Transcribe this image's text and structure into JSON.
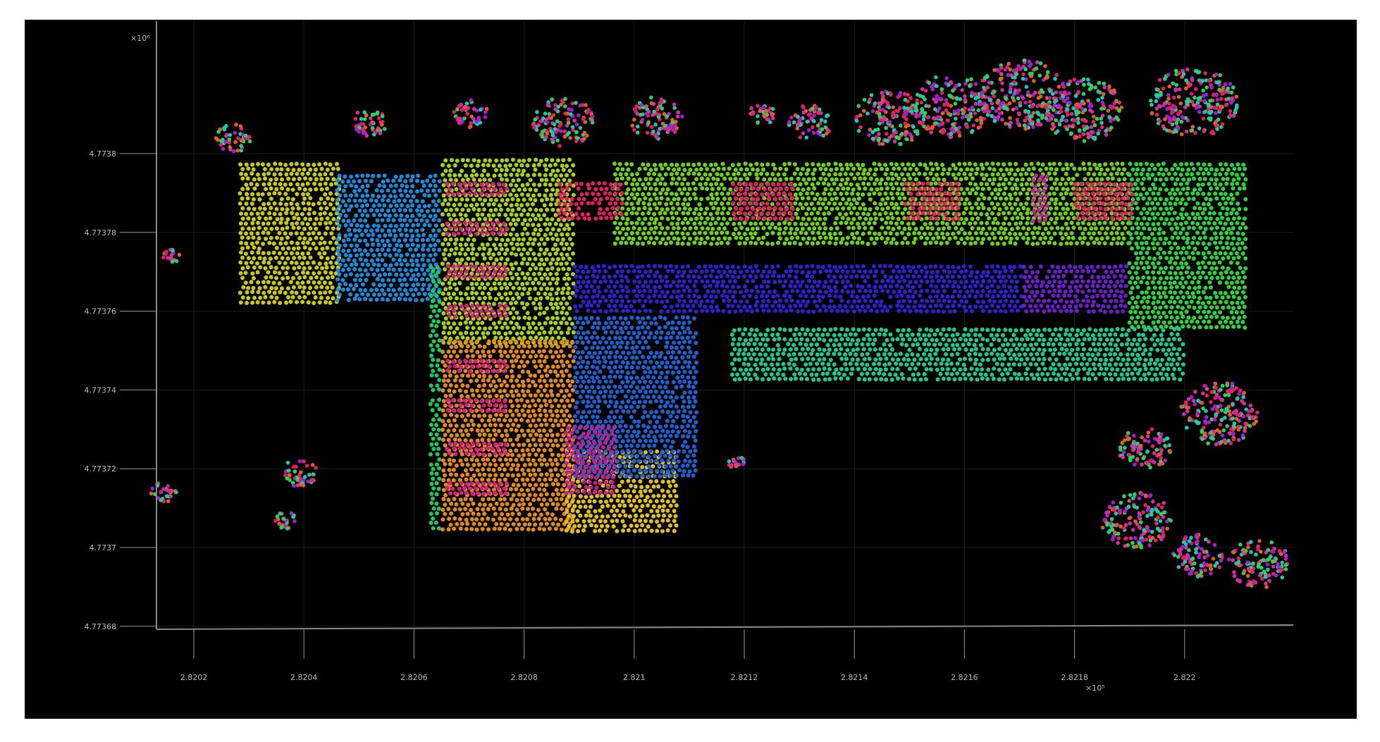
{
  "chart_data": {
    "type": "scatter",
    "title": "",
    "xlabel": "",
    "ylabel": "",
    "xlim": [
      2.82018,
      2.82229
    ],
    "ylim": [
      4.773682,
      4.773831
    ],
    "grid": true,
    "background": "#000000",
    "x_ticks": [
      "2.8202",
      "2.8204",
      "2.8206",
      "2.8208",
      "2.821",
      "2.8212",
      "2.8214",
      "2.8216",
      "2.8218",
      "2.822"
    ],
    "x_tick_values": [
      2.8202,
      2.8204,
      2.8206,
      2.8208,
      2.821,
      2.8212,
      2.8214,
      2.8216,
      2.8218,
      2.822
    ],
    "x_exponent": "×10⁵",
    "y_ticks": [
      "4.7738",
      "4.77378",
      "4.77376",
      "4.77374",
      "4.77372",
      "4.7737",
      "4.77368"
    ],
    "y_tick_values": [
      4.7738,
      4.77378,
      4.77376,
      4.77374,
      4.77372,
      4.7737,
      4.77368
    ],
    "y_exponent": "×10⁶",
    "segments": [
      {
        "x": [
          2.82028,
          2.820464
        ],
        "y": [
          4.773762,
          4.773798
        ],
        "color": "#c8c81e"
      },
      {
        "x": [
          2.820456,
          2.820648
        ],
        "y": [
          4.773763,
          4.773795
        ],
        "color": "#1e8ad8"
      },
      {
        "x": [
          2.820648,
          2.820888
        ],
        "y": [
          4.773752,
          4.773799
        ],
        "color": "#a8d020"
      },
      {
        "x": [
          2.820648,
          2.820888
        ],
        "y": [
          4.773704,
          4.773753
        ],
        "color": "#e08a20"
      },
      {
        "x": [
          2.820872,
          2.82108
        ],
        "y": [
          4.773704,
          4.773725
        ],
        "color": "#e0c020"
      },
      {
        "x": [
          2.820888,
          2.821112
        ],
        "y": [
          4.773718,
          4.773759
        ],
        "color": "#2060d0"
      },
      {
        "x": [
          2.820888,
          2.821704
        ],
        "y": [
          4.773759,
          4.773772
        ],
        "color": "#3020d0"
      },
      {
        "x": [
          2.821704,
          2.821896
        ],
        "y": [
          4.773759,
          4.773772
        ],
        "color": "#6a20c8"
      },
      {
        "x": [
          2.82096,
          2.821896
        ],
        "y": [
          4.773777,
          4.773798
        ],
        "color": "#70d020"
      },
      {
        "x": [
          2.821896,
          2.822112
        ],
        "y": [
          4.773755,
          4.773798
        ],
        "color": "#30d040"
      },
      {
        "x": [
          2.821173,
          2.822
        ],
        "y": [
          4.773742,
          4.773756
        ],
        "color": "#20c890"
      },
      {
        "x": [
          2.820626,
          2.820648
        ],
        "y": [
          4.773704,
          4.773772
        ],
        "color": "#20c860"
      },
      {
        "x": [
          2.820859,
          2.820976
        ],
        "y": [
          4.773783,
          4.773793
        ],
        "color": "#e02060"
      },
      {
        "x": [
          2.821176,
          2.821288
        ],
        "y": [
          4.773783,
          4.773793
        ],
        "color": "#e02060"
      },
      {
        "x": [
          2.821488,
          2.821592
        ],
        "y": [
          4.773783,
          4.773793
        ],
        "color": "#e02060"
      },
      {
        "x": [
          2.821797,
          2.821904
        ],
        "y": [
          4.773783,
          4.773793
        ],
        "color": "#e02060"
      },
      {
        "x": [
          2.82172,
          2.821752
        ],
        "y": [
          4.773783,
          4.773795
        ],
        "color": "#c020a0"
      },
      {
        "x": [
          2.820872,
          2.820968
        ],
        "y": [
          4.773714,
          4.773731
        ],
        "color": "#c02090"
      },
      {
        "x": [
          2.820656,
          2.820768
        ],
        "y": [
          4.773789,
          4.773793
        ],
        "color": "#d02080"
      },
      {
        "x": [
          2.820656,
          2.820768
        ],
        "y": [
          4.773779,
          4.773783
        ],
        "color": "#d02080"
      },
      {
        "x": [
          2.820656,
          2.820768
        ],
        "y": [
          4.773768,
          4.773772
        ],
        "color": "#d02080"
      },
      {
        "x": [
          2.820656,
          2.820768
        ],
        "y": [
          4.773758,
          4.773762
        ],
        "color": "#d02080"
      },
      {
        "x": [
          2.820656,
          2.820768
        ],
        "y": [
          4.773744,
          4.773748
        ],
        "color": "#d02080"
      },
      {
        "x": [
          2.820656,
          2.820768
        ],
        "y": [
          4.773734,
          4.773738
        ],
        "color": "#d02080"
      },
      {
        "x": [
          2.820656,
          2.820768
        ],
        "y": [
          4.773723,
          4.773727
        ],
        "color": "#d02080"
      },
      {
        "x": [
          2.820656,
          2.820768
        ],
        "y": [
          4.773713,
          4.773717
        ],
        "color": "#d02080"
      }
    ],
    "clusters": [
      {
        "x": 2.820272,
        "y": 4.773804,
        "r": 3.2e-05
      },
      {
        "x": 2.82052,
        "y": 4.773808,
        "r": 3.2e-05
      },
      {
        "x": 2.820704,
        "y": 4.77381,
        "r": 3.2e-05
      },
      {
        "x": 2.820872,
        "y": 4.773808,
        "r": 5.6e-05
      },
      {
        "x": 2.82104,
        "y": 4.773809,
        "r": 4.8e-05
      },
      {
        "x": 2.821232,
        "y": 4.77381,
        "r": 2.4e-05
      },
      {
        "x": 2.82132,
        "y": 4.773808,
        "r": 4e-05
      },
      {
        "x": 2.821464,
        "y": 4.773809,
        "r": 6.4e-05
      },
      {
        "x": 2.821576,
        "y": 4.773812,
        "r": 7.2e-05
      },
      {
        "x": 2.821704,
        "y": 4.773815,
        "r": 8e-05
      },
      {
        "x": 2.821816,
        "y": 4.773811,
        "r": 7.2e-05
      },
      {
        "x": 2.822016,
        "y": 4.773813,
        "r": 8e-05
      },
      {
        "x": 2.822064,
        "y": 4.773734,
        "r": 7.2e-05
      },
      {
        "x": 2.821928,
        "y": 4.773725,
        "r": 4.8e-05
      },
      {
        "x": 2.821912,
        "y": 4.773707,
        "r": 6.4e-05
      },
      {
        "x": 2.822024,
        "y": 4.773698,
        "r": 4.8e-05
      },
      {
        "x": 2.822136,
        "y": 4.773696,
        "r": 5.6e-05
      },
      {
        "x": 2.82016,
        "y": 4.773774,
        "r": 1.6e-05
      },
      {
        "x": 2.820392,
        "y": 4.773719,
        "r": 3.2e-05
      },
      {
        "x": 2.820368,
        "y": 4.773707,
        "r": 2e-05
      },
      {
        "x": 2.820144,
        "y": 4.773714,
        "r": 2.4e-05
      },
      {
        "x": 2.821184,
        "y": 4.773722,
        "r": 1.6e-05
      }
    ],
    "cluster_colors": [
      "#e02060",
      "#20c8b0",
      "#a020d0",
      "#e06020",
      "#30d060",
      "#d030a0"
    ]
  }
}
